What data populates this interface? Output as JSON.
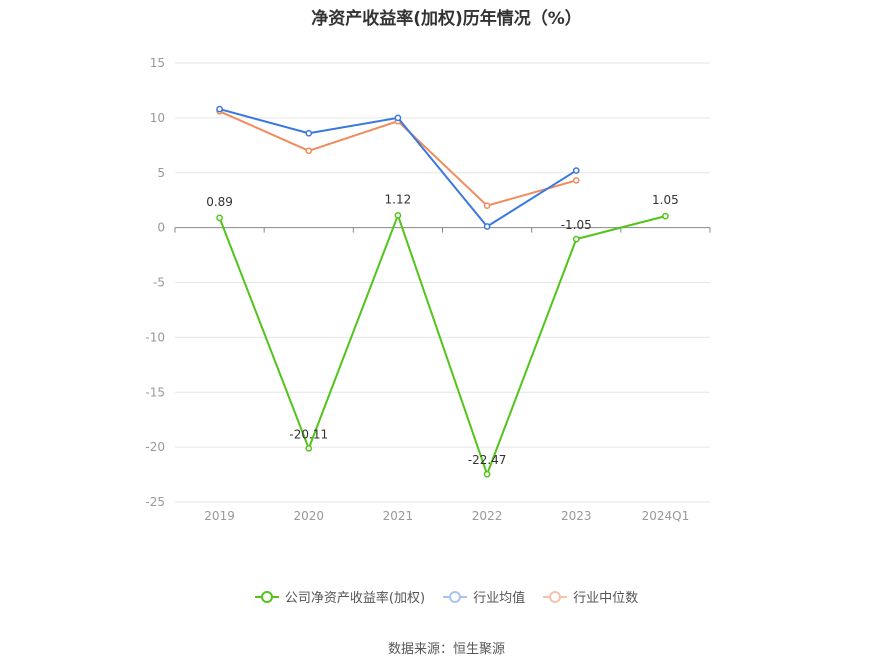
{
  "chart_data": {
    "type": "line",
    "title": "净资产收益率(加权)历年情况（%）",
    "categories": [
      "2019",
      "2020",
      "2021",
      "2022",
      "2023",
      "2024Q1"
    ],
    "y_ticks": [
      "15",
      "10",
      "5",
      "0",
      "-5",
      "-10",
      "-15",
      "-20",
      "-25"
    ],
    "ylim": [
      -25,
      15
    ],
    "grid": true,
    "legend_position": "bottom",
    "series": [
      {
        "name": "公司净资产收益率(加权)",
        "color": "#52c41a",
        "values": [
          0.89,
          -20.11,
          1.12,
          -22.47,
          -1.05,
          1.05
        ],
        "labels": [
          "0.89",
          "-20.11",
          "1.12",
          "-22.47",
          "-1.05",
          "1.05"
        ]
      },
      {
        "name": "行业均值",
        "color": "#3a78e0",
        "values": [
          10.8,
          8.6,
          10.0,
          0.1,
          5.2,
          null
        ]
      },
      {
        "name": "行业中位数",
        "color": "#f08b5c",
        "values": [
          10.6,
          7.0,
          9.7,
          2.0,
          4.3,
          null
        ]
      }
    ]
  },
  "source_label": "数据来源：恒生聚源"
}
